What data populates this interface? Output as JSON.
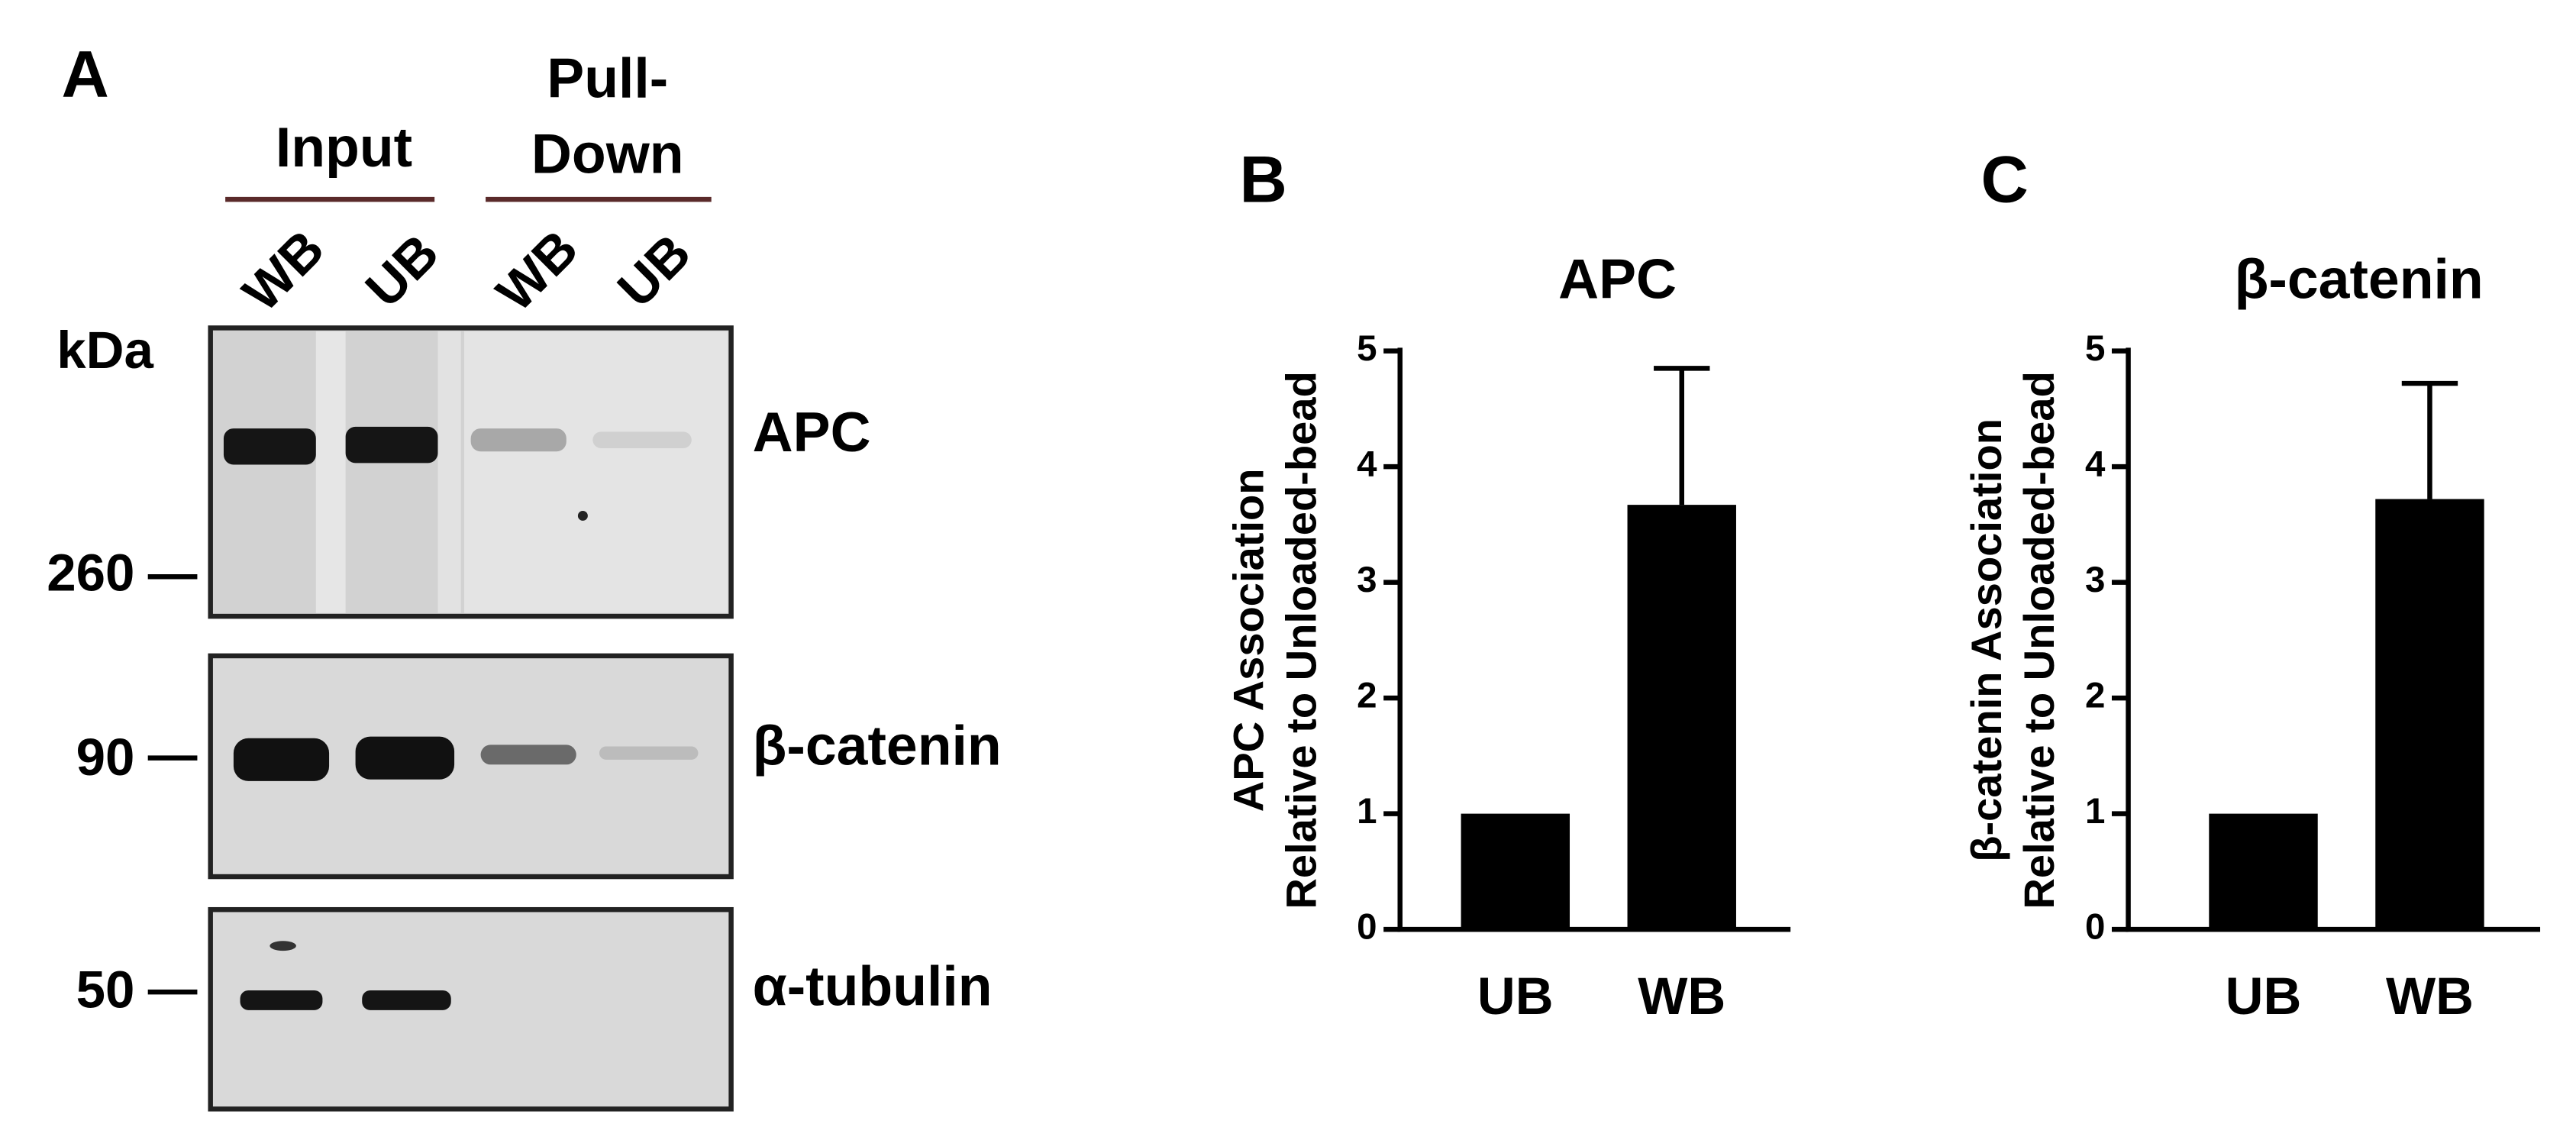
{
  "panel_a": {
    "letter": "A",
    "input": "Input",
    "pull_down": [
      "Pull-",
      "Down"
    ],
    "lanes": [
      "WB",
      "UB",
      "WB",
      "UB"
    ],
    "kda": "kDa",
    "markers": [
      "260",
      "90",
      "50"
    ],
    "proteins": [
      "APC",
      "β-catenin",
      "α-tubulin"
    ]
  },
  "chart_data": [
    {
      "type": "bar",
      "letter": "B",
      "title": "APC",
      "y_label": [
        "APC Association",
        "Relative to Unloaded-bead"
      ],
      "categories": [
        "UB",
        "WB"
      ],
      "values": [
        1,
        3.67
      ],
      "errors": [
        null,
        1.18
      ],
      "color": "#000000",
      "ylim": [
        0,
        5
      ],
      "yticks": [
        0,
        1,
        2,
        3,
        4,
        5
      ]
    },
    {
      "type": "bar",
      "letter": "C",
      "title": "β-catenin",
      "y_label": [
        "β-catenin Association",
        "Relative to Unloaded-bead"
      ],
      "categories": [
        "UB",
        "WB"
      ],
      "values": [
        1,
        3.72
      ],
      "errors": [
        null,
        1.0
      ],
      "color": "#000000",
      "ylim": [
        0,
        5
      ],
      "yticks": [
        0,
        1,
        2,
        3,
        4,
        5
      ]
    }
  ]
}
